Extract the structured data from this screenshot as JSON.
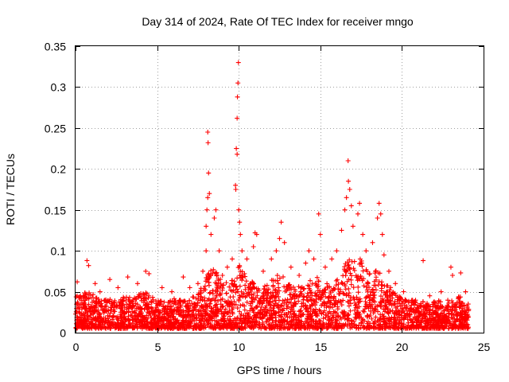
{
  "chart_data": {
    "type": "scatter",
    "title": "Day 314 of 2024, Rate Of TEC Index for receiver mngo",
    "xlabel": "GPS time / hours",
    "ylabel": "ROTI / TECUs",
    "xlim": [
      0,
      25
    ],
    "ylim": [
      0,
      0.35
    ],
    "x_ticks": [
      0,
      5,
      10,
      15,
      20,
      25
    ],
    "x_tick_labels": [
      "0",
      "5",
      "10",
      "15",
      "20",
      "25"
    ],
    "y_ticks": [
      0,
      0.05,
      0.1,
      0.15,
      0.2,
      0.25,
      0.3,
      0.35
    ],
    "y_tick_labels": [
      "0",
      "0.05",
      "0.1",
      "0.15",
      "0.2",
      "0.25",
      "0.3",
      "0.35"
    ],
    "grid": true,
    "marker": "+",
    "color": "#ff0000",
    "series": [
      {
        "name": "ROTI",
        "points": [
          [
            0.1,
            0.062
          ],
          [
            0.3,
            0.045
          ],
          [
            0.7,
            0.088
          ],
          [
            0.8,
            0.082
          ],
          [
            1.2,
            0.06
          ],
          [
            1.5,
            0.05
          ],
          [
            2.1,
            0.065
          ],
          [
            2.6,
            0.055
          ],
          [
            3.2,
            0.068
          ],
          [
            3.8,
            0.06
          ],
          [
            4.3,
            0.075
          ],
          [
            4.5,
            0.072
          ],
          [
            5.3,
            0.055
          ],
          [
            5.9,
            0.05
          ],
          [
            6.6,
            0.068
          ],
          [
            7.0,
            0.055
          ],
          [
            7.5,
            0.06
          ],
          [
            7.8,
            0.075
          ],
          [
            8.0,
            0.1
          ],
          [
            8.0,
            0.13
          ],
          [
            8.05,
            0.15
          ],
          [
            8.1,
            0.165
          ],
          [
            8.1,
            0.245
          ],
          [
            8.12,
            0.232
          ],
          [
            8.15,
            0.195
          ],
          [
            8.2,
            0.17
          ],
          [
            8.3,
            0.12
          ],
          [
            8.5,
            0.14
          ],
          [
            8.6,
            0.15
          ],
          [
            8.8,
            0.1
          ],
          [
            9.0,
            0.07
          ],
          [
            9.3,
            0.08
          ],
          [
            9.6,
            0.09
          ],
          [
            9.8,
            0.18
          ],
          [
            9.82,
            0.175
          ],
          [
            9.85,
            0.225
          ],
          [
            9.9,
            0.218
          ],
          [
            9.9,
            0.262
          ],
          [
            9.92,
            0.288
          ],
          [
            9.95,
            0.305
          ],
          [
            9.98,
            0.33
          ],
          [
            10.0,
            0.15
          ],
          [
            10.05,
            0.135
          ],
          [
            10.1,
            0.12
          ],
          [
            10.2,
            0.1
          ],
          [
            10.5,
            0.09
          ],
          [
            10.9,
            0.105
          ],
          [
            11.0,
            0.122
          ],
          [
            11.1,
            0.12
          ],
          [
            11.5,
            0.075
          ],
          [
            12.0,
            0.09
          ],
          [
            12.3,
            0.1
          ],
          [
            12.5,
            0.115
          ],
          [
            12.6,
            0.135
          ],
          [
            12.8,
            0.11
          ],
          [
            13.2,
            0.08
          ],
          [
            13.7,
            0.07
          ],
          [
            14.1,
            0.085
          ],
          [
            14.3,
            0.1
          ],
          [
            14.6,
            0.09
          ],
          [
            14.9,
            0.145
          ],
          [
            15.0,
            0.12
          ],
          [
            15.3,
            0.08
          ],
          [
            15.7,
            0.09
          ],
          [
            16.0,
            0.1
          ],
          [
            16.3,
            0.125
          ],
          [
            16.5,
            0.15
          ],
          [
            16.6,
            0.165
          ],
          [
            16.7,
            0.21
          ],
          [
            16.72,
            0.185
          ],
          [
            16.8,
            0.175
          ],
          [
            16.9,
            0.155
          ],
          [
            17.0,
            0.13
          ],
          [
            17.3,
            0.145
          ],
          [
            17.4,
            0.158
          ],
          [
            17.6,
            0.12
          ],
          [
            17.8,
            0.1
          ],
          [
            18.2,
            0.11
          ],
          [
            18.5,
            0.14
          ],
          [
            18.6,
            0.158
          ],
          [
            18.7,
            0.145
          ],
          [
            18.8,
            0.12
          ],
          [
            18.9,
            0.095
          ],
          [
            19.2,
            0.075
          ],
          [
            19.6,
            0.06
          ],
          [
            20.1,
            0.05
          ],
          [
            21.3,
            0.088
          ],
          [
            21.7,
            0.045
          ],
          [
            22.4,
            0.05
          ],
          [
            23.0,
            0.08
          ],
          [
            23.1,
            0.07
          ],
          [
            23.6,
            0.073
          ],
          [
            23.9,
            0.05
          ]
        ]
      }
    ],
    "dense_envelope": {
      "description": "dense cluster of markers between lower and upper ROTI bounds over the day",
      "hours": [
        0,
        0.5,
        1,
        1.5,
        2,
        2.5,
        3,
        3.5,
        4,
        4.5,
        5,
        5.5,
        6,
        6.5,
        7,
        7.5,
        8,
        8.5,
        9,
        9.5,
        10,
        10.5,
        11,
        11.5,
        12,
        12.5,
        13,
        13.5,
        14,
        14.5,
        15,
        15.5,
        16,
        16.5,
        17,
        17.5,
        18,
        18.5,
        19,
        19.5,
        20,
        20.5,
        21,
        21.5,
        22,
        22.5,
        23,
        23.5,
        24.1
      ],
      "lower": [
        0.005,
        0.005,
        0.005,
        0.005,
        0.005,
        0.005,
        0.005,
        0.005,
        0.005,
        0.005,
        0.005,
        0.005,
        0.005,
        0.005,
        0.005,
        0.005,
        0.005,
        0.005,
        0.005,
        0.005,
        0.005,
        0.005,
        0.005,
        0.005,
        0.005,
        0.005,
        0.005,
        0.005,
        0.005,
        0.005,
        0.005,
        0.005,
        0.005,
        0.005,
        0.005,
        0.005,
        0.005,
        0.005,
        0.005,
        0.005,
        0.005,
        0.005,
        0.005,
        0.005,
        0.005,
        0.005,
        0.005,
        0.005,
        0.005
      ],
      "upper": [
        0.045,
        0.05,
        0.048,
        0.04,
        0.042,
        0.04,
        0.045,
        0.042,
        0.05,
        0.048,
        0.04,
        0.038,
        0.042,
        0.04,
        0.04,
        0.05,
        0.07,
        0.08,
        0.065,
        0.06,
        0.085,
        0.07,
        0.06,
        0.055,
        0.065,
        0.075,
        0.06,
        0.055,
        0.06,
        0.065,
        0.07,
        0.06,
        0.065,
        0.085,
        0.095,
        0.09,
        0.075,
        0.08,
        0.065,
        0.05,
        0.042,
        0.04,
        0.04,
        0.04,
        0.038,
        0.04,
        0.04,
        0.045,
        0.035
      ]
    }
  }
}
